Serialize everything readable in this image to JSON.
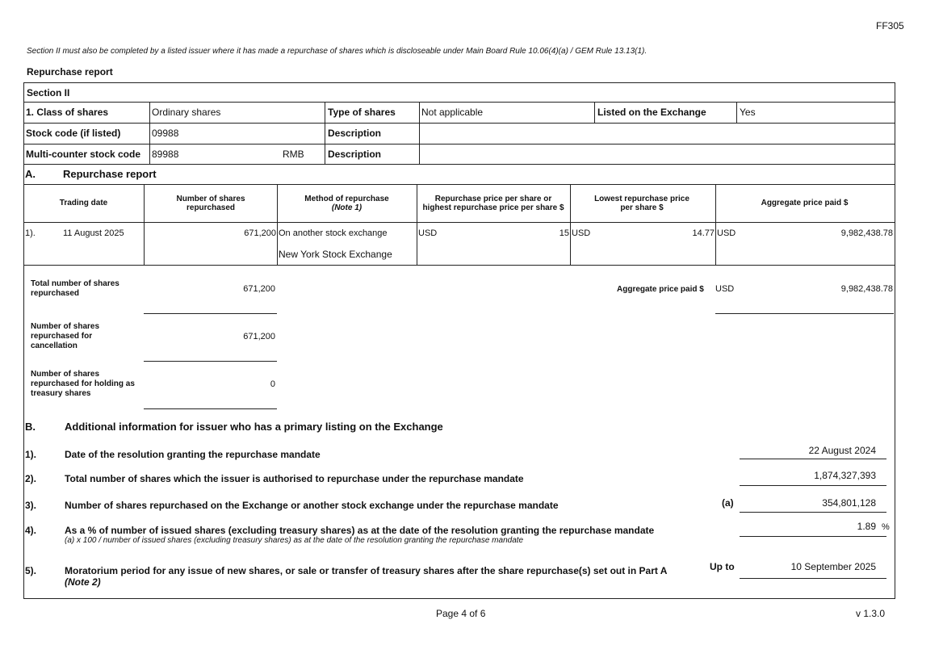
{
  "form_code": "FF305",
  "intro_note": "Section II must also be completed by a listed issuer where it has made a repurchase of shares which is discloseable under Main Board Rule 10.06(4)(a) / GEM Rule 13.13(1).",
  "report_title": "Repurchase report",
  "section_title": "Section II",
  "info": {
    "class_label": "1. Class of shares",
    "class_value": "Ordinary shares",
    "type_label": "Type of shares",
    "type_value": "Not applicable",
    "listed_label": "Listed on the Exchange",
    "listed_value": "Yes",
    "stock_code_label": "Stock code (if listed)",
    "stock_code_value": "09988",
    "desc_label": "Description",
    "multi_label": "Multi-counter stock code",
    "multi_value": "89988",
    "multi_currency": "RMB",
    "desc2_label": "Description"
  },
  "partA": {
    "letter": "A.",
    "title": "Repurchase report",
    "headers": [
      "Trading date",
      "Number of shares repurchased",
      "Method of repurchase",
      "(Note 1)",
      "Repurchase price per share or highest repurchase price per share $",
      "Lowest repurchase price per share $",
      "Aggregate price paid $"
    ],
    "rows": [
      {
        "index": "1).",
        "date": "11 August 2025",
        "shares": "671,200",
        "method": "On another stock exchange",
        "exchange": "New York Stock Exchange",
        "high_cur": "USD",
        "high": "15",
        "low_cur": "USD",
        "low": "14.77",
        "agg_cur": "USD",
        "agg": "9,982,438.78"
      }
    ],
    "total_label": "Total number of shares repurchased",
    "total_value": "671,200",
    "agg_label": "Aggregate price paid $",
    "agg_cur": "USD",
    "agg_value": "9,982,438.78",
    "cancel_label": "Number of shares repurchased for cancellation",
    "cancel_value": "671,200",
    "treasury_label": "Number of shares repurchased for holding as treasury shares",
    "treasury_value": "0"
  },
  "partB": {
    "letter": "B.",
    "title": "Additional information for issuer who has a primary listing on the Exchange",
    "items": [
      {
        "index": "1).",
        "label": "Date of the resolution granting the repurchase mandate",
        "value": "22 August 2024"
      },
      {
        "index": "2).",
        "label": "Total number of shares which the issuer is authorised to repurchase under the repurchase mandate",
        "value": "1,874,327,393"
      },
      {
        "index": "3).",
        "label": "Number of shares repurchased on the Exchange or another stock exchange under the repurchase mandate",
        "prefix": "(a)",
        "value": "354,801,128"
      },
      {
        "index": "4).",
        "label": "As a % of number of issued shares (excluding treasury shares) as at the date of the resolution granting the repurchase mandate",
        "sub": "(a) x 100 / number of issued shares (excluding treasury shares) as at the date of the resolution granting the repurchase mandate",
        "value": "1.89",
        "suffix": "%"
      },
      {
        "index": "5).",
        "label": "Moratorium period for any issue of new shares, or sale or transfer of treasury shares after the share repurchase(s) set out in Part A",
        "sub": "(Note 2)",
        "prefix": "Up to",
        "value": "10 September 2025"
      }
    ]
  },
  "footer": {
    "page": "Page 4 of 6",
    "version": "v 1.3.0"
  }
}
